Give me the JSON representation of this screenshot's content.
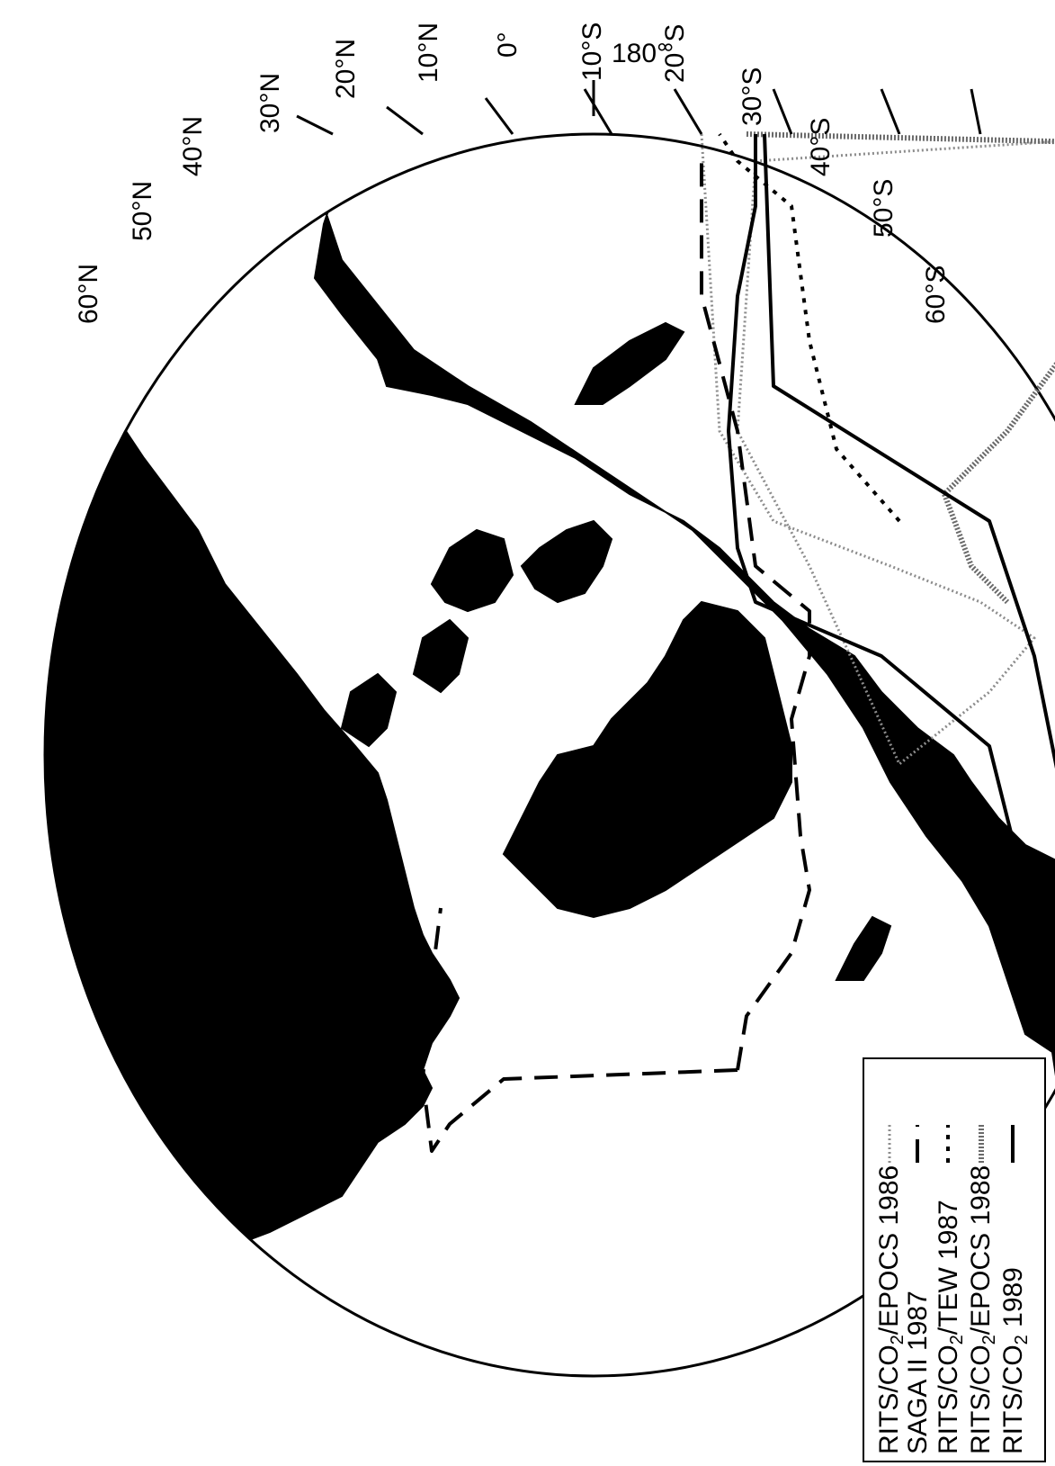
{
  "map": {
    "meridian_label": "180°",
    "latitude_labels": [
      "60°N",
      "50°N",
      "40°N",
      "30°N",
      "20°N",
      "10°N",
      "0°",
      "10°S",
      "20°S",
      "30°S",
      "40°S",
      "50°S",
      "60°S"
    ]
  },
  "legend": {
    "items": [
      {
        "label": "RITS/CO2/EPOCS 1986",
        "prefix": "RITS/CO",
        "sub": "2",
        "suffix": "/EPOCS 1986",
        "style": "gray-dotted"
      },
      {
        "label": "SAGA II 1987",
        "prefix": "SAGA II 1987",
        "sub": "",
        "suffix": "",
        "style": "long-dash"
      },
      {
        "label": "RITS/CO2/TEW 1987",
        "prefix": "RITS/CO",
        "sub": "2",
        "suffix": "/TEW 1987",
        "style": "short-dash"
      },
      {
        "label": "RITS/CO2/EPOCS 1988",
        "prefix": "RITS/CO",
        "sub": "2",
        "suffix": "/EPOCS 1988",
        "style": "double-gray"
      },
      {
        "label": "RITS/CO2 1989",
        "prefix": "RITS/CO",
        "sub": "2",
        "suffix": " 1989",
        "style": "solid"
      }
    ]
  }
}
